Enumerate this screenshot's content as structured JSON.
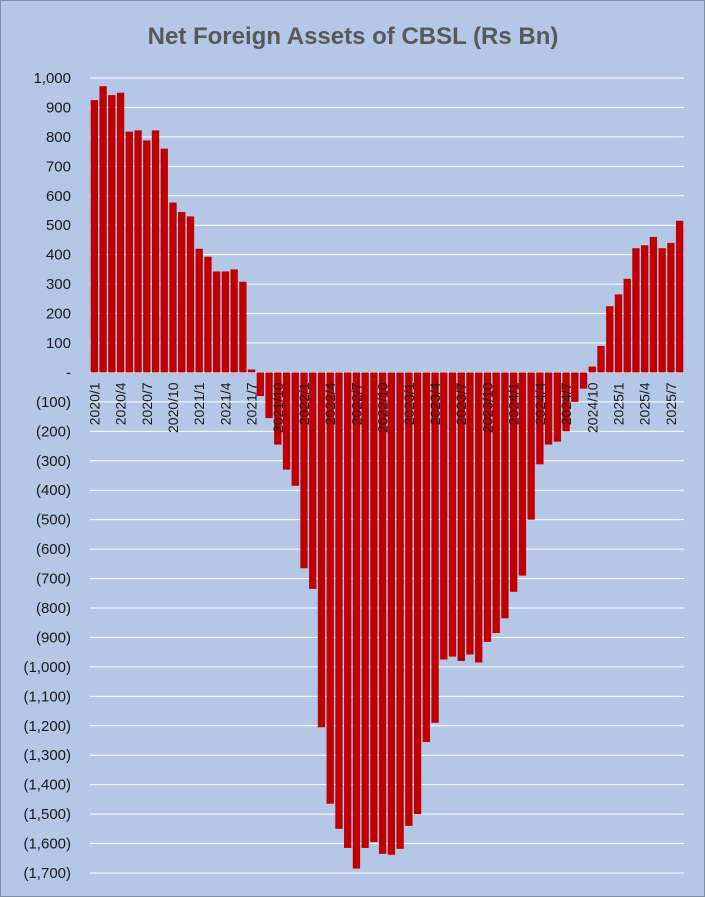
{
  "chart_data": {
    "type": "bar",
    "title": "Net Foreign Assets of CBSL (Rs Bn)",
    "xlabel": "",
    "ylabel": "",
    "ylim": [
      -1700,
      1000
    ],
    "y_ticks": [
      {
        "value": 1000,
        "label": "1,000"
      },
      {
        "value": 900,
        "label": "900"
      },
      {
        "value": 800,
        "label": "800"
      },
      {
        "value": 700,
        "label": "700"
      },
      {
        "value": 600,
        "label": "600"
      },
      {
        "value": 500,
        "label": "500"
      },
      {
        "value": 400,
        "label": "400"
      },
      {
        "value": 300,
        "label": "300"
      },
      {
        "value": 200,
        "label": "200"
      },
      {
        "value": 100,
        "label": "100"
      },
      {
        "value": 0,
        "label": "-"
      },
      {
        "value": -100,
        "label": "(100)"
      },
      {
        "value": -200,
        "label": "(200)"
      },
      {
        "value": -300,
        "label": "(300)"
      },
      {
        "value": -400,
        "label": "(400)"
      },
      {
        "value": -500,
        "label": "(500)"
      },
      {
        "value": -600,
        "label": "(600)"
      },
      {
        "value": -700,
        "label": "(700)"
      },
      {
        "value": -800,
        "label": "(800)"
      },
      {
        "value": -900,
        "label": "(900)"
      },
      {
        "value": -1000,
        "label": "(1,000)"
      },
      {
        "value": -1100,
        "label": "(1,100)"
      },
      {
        "value": -1200,
        "label": "(1,200)"
      },
      {
        "value": -1300,
        "label": "(1,300)"
      },
      {
        "value": -1400,
        "label": "(1,400)"
      },
      {
        "value": -1500,
        "label": "(1,500)"
      },
      {
        "value": -1600,
        "label": "(1,600)"
      },
      {
        "value": -1700,
        "label": "(1,700)"
      }
    ],
    "x_tick_labels": [
      "2020/1",
      "2020/4",
      "2020/7",
      "2020/10",
      "2021/1",
      "2021/4",
      "2021/7",
      "2021/10",
      "2022/1",
      "2022/4",
      "2022/7",
      "2022/10",
      "2023/1",
      "2023/4",
      "2023/7",
      "2023/10",
      "2024/1",
      "2024/4",
      "2024/7",
      "2024/10",
      "2025/1",
      "2025/4",
      "2025/7"
    ],
    "categories": [
      "2020/1",
      "2020/2",
      "2020/3",
      "2020/4",
      "2020/5",
      "2020/6",
      "2020/7",
      "2020/8",
      "2020/9",
      "2020/10",
      "2020/11",
      "2020/12",
      "2021/1",
      "2021/2",
      "2021/3",
      "2021/4",
      "2021/5",
      "2021/6",
      "2021/7",
      "2021/8",
      "2021/9",
      "2021/10",
      "2021/11",
      "2021/12",
      "2022/1",
      "2022/2",
      "2022/3",
      "2022/4",
      "2022/5",
      "2022/6",
      "2022/7",
      "2022/8",
      "2022/9",
      "2022/10",
      "2022/11",
      "2022/12",
      "2023/1",
      "2023/2",
      "2023/3",
      "2023/4",
      "2023/5",
      "2023/6",
      "2023/7",
      "2023/8",
      "2023/9",
      "2023/10",
      "2023/11",
      "2023/12",
      "2024/1",
      "2024/2",
      "2024/3",
      "2024/4",
      "2024/5",
      "2024/6",
      "2024/7",
      "2024/8",
      "2024/9",
      "2024/10",
      "2024/11",
      "2024/12",
      "2025/1",
      "2025/2",
      "2025/3",
      "2025/4",
      "2025/5",
      "2025/6",
      "2025/7",
      "2025/8"
    ],
    "values": [
      925,
      972,
      942,
      950,
      818,
      822,
      788,
      822,
      760,
      577,
      545,
      530,
      420,
      393,
      343,
      343,
      350,
      308,
      10,
      -80,
      -155,
      -245,
      -330,
      -385,
      -665,
      -735,
      -1205,
      -1465,
      -1550,
      -1615,
      -1685,
      -1615,
      -1595,
      -1635,
      -1638,
      -1618,
      -1540,
      -1500,
      -1255,
      -1190,
      -975,
      -965,
      -980,
      -958,
      -985,
      -915,
      -885,
      -835,
      -745,
      -690,
      -500,
      -312,
      -245,
      -235,
      -200,
      -100,
      -55,
      20,
      90,
      225,
      265,
      318,
      422,
      432,
      460,
      422,
      440,
      515
    ],
    "bar_color": "#c00000",
    "grid": true,
    "legend": "none"
  }
}
